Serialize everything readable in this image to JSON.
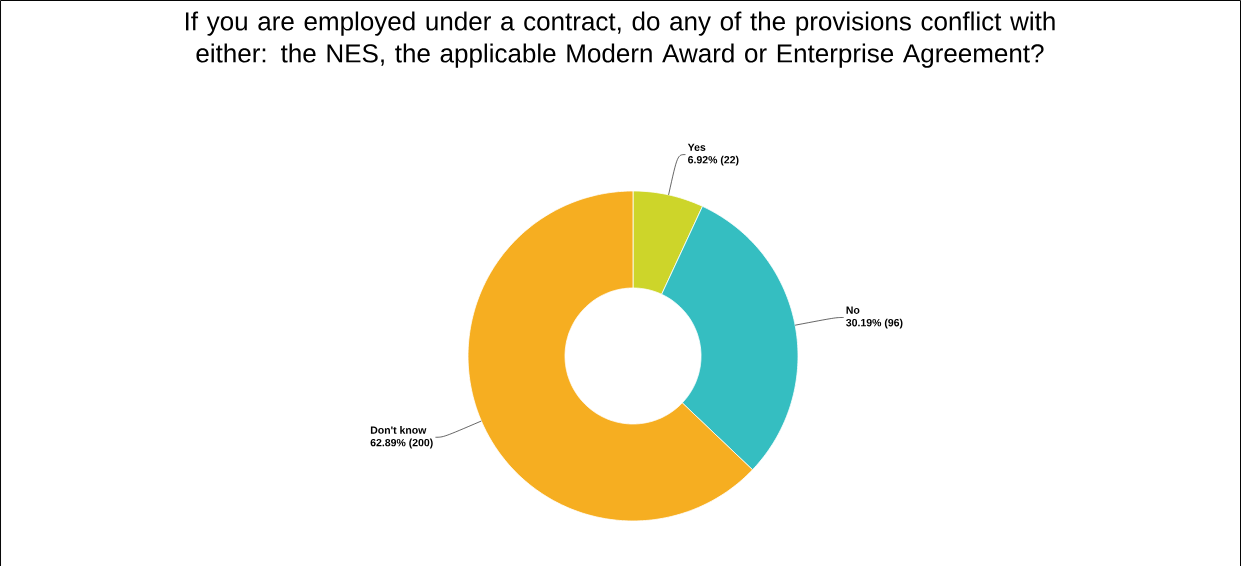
{
  "chart_data": {
    "type": "donut",
    "title": "If you are employed under a contract, do any of the provisions conflict with either: the NES, the applicable Modern Award or Enterprise Agreement?",
    "categories": [
      "Yes",
      "No",
      "Don't know"
    ],
    "values": [
      22,
      96,
      200
    ],
    "value_labels": [
      "6.92% (22)",
      "30.19% (96)",
      "62.89% (200)"
    ],
    "colors": [
      "#cdd52a",
      "#35bec1",
      "#f6ae21"
    ],
    "legend": false
  }
}
